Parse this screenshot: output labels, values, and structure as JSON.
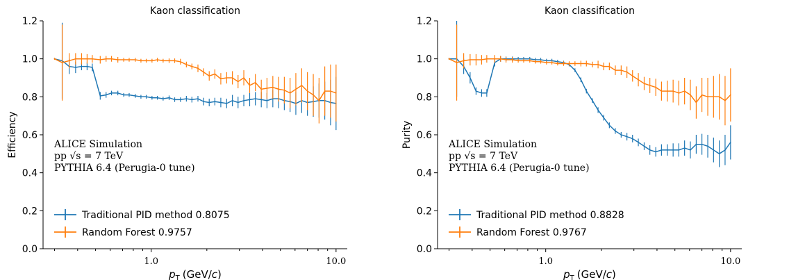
{
  "colors": {
    "blue": "#1f77b4",
    "orange": "#ff7f0e"
  },
  "chart_data": [
    {
      "type": "line",
      "title": "Kaon classification",
      "ylabel": "Efficiency",
      "xlabel": "p_T (GeV/c)",
      "xlabel_main": "p",
      "xlabel_sub": "T",
      "xlabel_unit": "(GeV/",
      "xlabel_unit_c": "c",
      "xlabel_unit_end": ")",
      "xscale": "log",
      "xlim": [
        0.26,
        11.5
      ],
      "ylim": [
        0.0,
        1.2
      ],
      "yticks": [
        "0.0",
        "0.2",
        "0.4",
        "0.6",
        "0.8",
        "1.0",
        "1.2"
      ],
      "xticks": [
        {
          "value": 1.0,
          "label": "1.0"
        },
        {
          "value": 10.0,
          "label": "10.0"
        }
      ],
      "annotation": [
        "ALICE Simulation",
        "pp √s = 7 TeV",
        "PYTHIA 6.4 (Perugia-0 tune)"
      ],
      "legend_position": "lower-left",
      "series": [
        {
          "name": "Traditional PID method 0.8075",
          "color": "#1f77b4",
          "x": [
            0.3,
            0.33,
            0.36,
            0.39,
            0.42,
            0.45,
            0.48,
            0.53,
            0.57,
            0.61,
            0.66,
            0.71,
            0.76,
            0.82,
            0.88,
            0.94,
            1.01,
            1.08,
            1.16,
            1.25,
            1.34,
            1.44,
            1.55,
            1.66,
            1.79,
            1.92,
            2.06,
            2.21,
            2.38,
            2.56,
            2.75,
            2.95,
            3.17,
            3.41,
            3.66,
            3.94,
            4.23,
            4.55,
            4.89,
            5.25,
            5.64,
            6.06,
            6.52,
            7.0,
            7.53,
            8.09,
            8.69,
            9.34,
            10.0
          ],
          "y": [
            1.0,
            0.99,
            0.96,
            0.955,
            0.96,
            0.96,
            0.955,
            0.805,
            0.81,
            0.82,
            0.82,
            0.81,
            0.81,
            0.805,
            0.8,
            0.8,
            0.795,
            0.795,
            0.79,
            0.795,
            0.785,
            0.785,
            0.79,
            0.785,
            0.79,
            0.775,
            0.77,
            0.775,
            0.77,
            0.765,
            0.78,
            0.77,
            0.78,
            0.785,
            0.79,
            0.785,
            0.78,
            0.79,
            0.79,
            0.78,
            0.775,
            0.765,
            0.78,
            0.77,
            0.775,
            0.78,
            0.78,
            0.77,
            0.765
          ],
          "err": [
            0.005,
            0.2,
            0.04,
            0.03,
            0.02,
            0.02,
            0.02,
            0.02,
            0.015,
            0.012,
            0.012,
            0.01,
            0.01,
            0.01,
            0.01,
            0.01,
            0.01,
            0.01,
            0.01,
            0.012,
            0.012,
            0.012,
            0.015,
            0.015,
            0.015,
            0.02,
            0.02,
            0.02,
            0.025,
            0.025,
            0.03,
            0.03,
            0.03,
            0.035,
            0.035,
            0.04,
            0.04,
            0.045,
            0.05,
            0.05,
            0.055,
            0.06,
            0.065,
            0.07,
            0.08,
            0.09,
            0.1,
            0.12,
            0.14
          ]
        },
        {
          "name": "Random Forest 0.9757",
          "color": "#ff7f0e",
          "x": [
            0.3,
            0.33,
            0.36,
            0.39,
            0.42,
            0.45,
            0.48,
            0.53,
            0.57,
            0.61,
            0.66,
            0.71,
            0.76,
            0.82,
            0.88,
            0.94,
            1.01,
            1.08,
            1.16,
            1.25,
            1.34,
            1.44,
            1.55,
            1.66,
            1.79,
            1.92,
            2.06,
            2.21,
            2.38,
            2.56,
            2.75,
            2.95,
            3.17,
            3.41,
            3.66,
            3.94,
            4.23,
            4.55,
            4.89,
            5.25,
            5.64,
            6.06,
            6.52,
            7.0,
            7.53,
            8.09,
            8.69,
            9.34,
            10.0
          ],
          "y": [
            1.0,
            0.98,
            0.99,
            1.0,
            1.0,
            1.0,
            1.0,
            0.995,
            1.0,
            1.0,
            0.995,
            0.995,
            0.995,
            0.995,
            0.99,
            0.99,
            0.99,
            0.995,
            0.99,
            0.99,
            0.99,
            0.985,
            0.97,
            0.96,
            0.95,
            0.93,
            0.91,
            0.92,
            0.895,
            0.9,
            0.9,
            0.88,
            0.9,
            0.86,
            0.875,
            0.84,
            0.845,
            0.85,
            0.84,
            0.835,
            0.82,
            0.84,
            0.86,
            0.83,
            0.81,
            0.78,
            0.83,
            0.83,
            0.82
          ],
          "err": [
            0.005,
            0.2,
            0.04,
            0.03,
            0.03,
            0.025,
            0.02,
            0.02,
            0.015,
            0.015,
            0.015,
            0.01,
            0.01,
            0.01,
            0.01,
            0.01,
            0.01,
            0.01,
            0.01,
            0.012,
            0.012,
            0.015,
            0.015,
            0.015,
            0.02,
            0.02,
            0.025,
            0.025,
            0.03,
            0.03,
            0.035,
            0.035,
            0.04,
            0.04,
            0.045,
            0.05,
            0.055,
            0.06,
            0.065,
            0.07,
            0.08,
            0.085,
            0.09,
            0.1,
            0.11,
            0.12,
            0.13,
            0.14,
            0.15
          ]
        }
      ]
    },
    {
      "type": "line",
      "title": "Kaon classification",
      "ylabel": "Purity",
      "xlabel": "p_T (GeV/c)",
      "xlabel_main": "p",
      "xlabel_sub": "T",
      "xlabel_unit": "(GeV/",
      "xlabel_unit_c": "c",
      "xlabel_unit_end": ")",
      "xscale": "log",
      "xlim": [
        0.26,
        11.5
      ],
      "ylim": [
        0.0,
        1.2
      ],
      "yticks": [
        "0.0",
        "0.2",
        "0.4",
        "0.6",
        "0.8",
        "1.0",
        "1.2"
      ],
      "xticks": [
        {
          "value": 1.0,
          "label": "1.0"
        },
        {
          "value": 10.0,
          "label": "10.0"
        }
      ],
      "annotation": [
        "ALICE Simulation",
        "pp √s = 7 TeV",
        "PYTHIA 6.4 (Perugia-0 tune)"
      ],
      "legend_position": "lower-left",
      "series": [
        {
          "name": "Traditional PID method 0.8828",
          "color": "#1f77b4",
          "x": [
            0.3,
            0.33,
            0.36,
            0.39,
            0.42,
            0.45,
            0.48,
            0.53,
            0.57,
            0.61,
            0.66,
            0.71,
            0.76,
            0.82,
            0.88,
            0.94,
            1.01,
            1.08,
            1.16,
            1.25,
            1.34,
            1.44,
            1.55,
            1.66,
            1.79,
            1.92,
            2.06,
            2.21,
            2.38,
            2.56,
            2.75,
            2.95,
            3.17,
            3.41,
            3.66,
            3.94,
            4.23,
            4.55,
            4.89,
            5.25,
            5.64,
            6.06,
            6.52,
            7.0,
            7.53,
            8.09,
            8.69,
            9.34,
            10.0
          ],
          "y": [
            1.0,
            1.0,
            0.96,
            0.9,
            0.83,
            0.82,
            0.82,
            0.98,
            1.0,
            1.0,
            1.0,
            1.0,
            1.0,
            1.0,
            0.995,
            0.995,
            0.99,
            0.99,
            0.985,
            0.98,
            0.97,
            0.94,
            0.89,
            0.83,
            0.78,
            0.73,
            0.69,
            0.65,
            0.62,
            0.6,
            0.59,
            0.58,
            0.56,
            0.54,
            0.52,
            0.51,
            0.52,
            0.52,
            0.52,
            0.52,
            0.53,
            0.52,
            0.55,
            0.55,
            0.54,
            0.52,
            0.5,
            0.52,
            0.56
          ],
          "err": [
            0.005,
            0.2,
            0.04,
            0.03,
            0.02,
            0.02,
            0.02,
            0.02,
            0.015,
            0.012,
            0.012,
            0.01,
            0.01,
            0.01,
            0.01,
            0.01,
            0.01,
            0.01,
            0.01,
            0.01,
            0.01,
            0.01,
            0.012,
            0.012,
            0.012,
            0.015,
            0.015,
            0.015,
            0.015,
            0.015,
            0.02,
            0.02,
            0.02,
            0.02,
            0.025,
            0.025,
            0.03,
            0.03,
            0.035,
            0.035,
            0.04,
            0.045,
            0.05,
            0.055,
            0.06,
            0.065,
            0.07,
            0.08,
            0.09
          ]
        },
        {
          "name": "Random Forest 0.9767",
          "color": "#ff7f0e",
          "x": [
            0.3,
            0.33,
            0.36,
            0.39,
            0.42,
            0.45,
            0.48,
            0.53,
            0.57,
            0.61,
            0.66,
            0.71,
            0.76,
            0.82,
            0.88,
            0.94,
            1.01,
            1.08,
            1.16,
            1.25,
            1.34,
            1.44,
            1.55,
            1.66,
            1.79,
            1.92,
            2.06,
            2.21,
            2.38,
            2.56,
            2.75,
            2.95,
            3.17,
            3.41,
            3.66,
            3.94,
            4.23,
            4.55,
            4.89,
            5.25,
            5.64,
            6.06,
            6.52,
            7.0,
            7.53,
            8.09,
            8.69,
            9.34,
            10.0
          ],
          "y": [
            1.0,
            0.98,
            0.99,
            0.995,
            0.995,
            0.995,
            1.0,
            1.0,
            1.0,
            0.995,
            0.995,
            0.99,
            0.99,
            0.99,
            0.985,
            0.985,
            0.98,
            0.98,
            0.975,
            0.975,
            0.975,
            0.975,
            0.975,
            0.975,
            0.97,
            0.97,
            0.96,
            0.96,
            0.94,
            0.94,
            0.93,
            0.91,
            0.89,
            0.87,
            0.86,
            0.85,
            0.83,
            0.83,
            0.83,
            0.82,
            0.83,
            0.81,
            0.77,
            0.81,
            0.8,
            0.8,
            0.8,
            0.78,
            0.81
          ],
          "err": [
            0.005,
            0.2,
            0.04,
            0.03,
            0.03,
            0.025,
            0.02,
            0.02,
            0.015,
            0.015,
            0.015,
            0.01,
            0.01,
            0.01,
            0.01,
            0.01,
            0.01,
            0.01,
            0.01,
            0.012,
            0.012,
            0.012,
            0.015,
            0.015,
            0.015,
            0.02,
            0.02,
            0.02,
            0.025,
            0.025,
            0.03,
            0.03,
            0.035,
            0.035,
            0.04,
            0.045,
            0.05,
            0.055,
            0.06,
            0.065,
            0.07,
            0.08,
            0.085,
            0.09,
            0.1,
            0.11,
            0.12,
            0.13,
            0.14
          ]
        }
      ]
    }
  ]
}
